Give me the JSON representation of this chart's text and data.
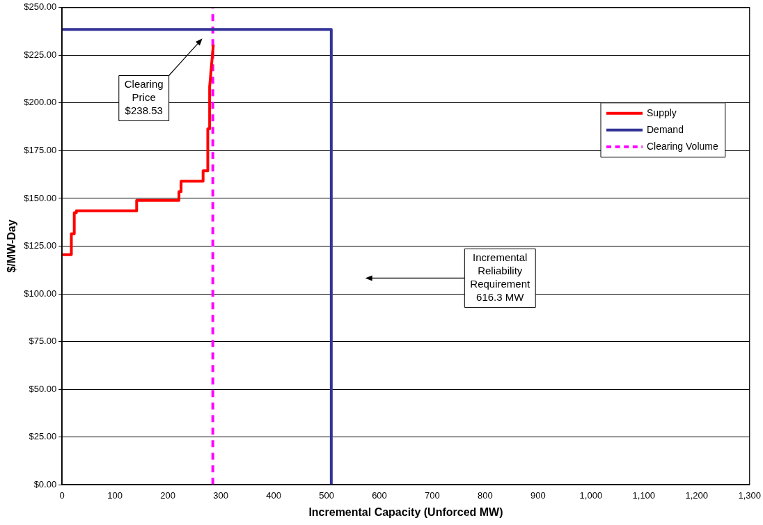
{
  "chart_data": {
    "type": "line",
    "xlabel": "Incremental Capacity (Unforced MW)",
    "ylabel": "$/MW-Day",
    "xlim": [
      0,
      1300
    ],
    "xticks": [
      0,
      100,
      200,
      300,
      400,
      500,
      600,
      700,
      800,
      900,
      {
        "value": 1000,
        "label": "1,000"
      },
      {
        "value": 1100,
        "label": "1,100"
      },
      {
        "value": 1200,
        "label": "1,200"
      },
      {
        "value": 1300,
        "label": "1,300"
      }
    ],
    "ylim": [
      0,
      250
    ],
    "yticks": [
      {
        "value": 0,
        "label": "$0.00"
      },
      {
        "value": 25,
        "label": "$25.00"
      },
      {
        "value": 50,
        "label": "$50.00"
      },
      {
        "value": 75,
        "label": "$75.00"
      },
      {
        "value": 100,
        "label": "$100.00"
      },
      {
        "value": 125,
        "label": "$125.00"
      },
      {
        "value": 150,
        "label": "$150.00"
      },
      {
        "value": 175,
        "label": "$175.00"
      },
      {
        "value": 200,
        "label": "$200.00"
      },
      {
        "value": 225,
        "label": "$225.00"
      },
      {
        "value": 250,
        "label": "$250.00"
      }
    ],
    "grid": "y",
    "legend": "top right",
    "marker": "none",
    "series": [
      {
        "name": "Supply",
        "color": "#ff0000",
        "line_style": "solid",
        "x": [
          0,
          17.5,
          17.5,
          23,
          23,
          27,
          27,
          141,
          141,
          221,
          221,
          225,
          225,
          266.6,
          266.6,
          275.5,
          275.5,
          279,
          279,
          286
        ],
        "values": [
          120.5,
          120.5,
          131.5,
          131.5,
          142.5,
          142.5,
          143.5,
          143.5,
          149,
          149,
          153.5,
          153.5,
          159,
          159,
          164.5,
          164.5,
          186.5,
          186.5,
          208.5,
          230.5
        ]
      },
      {
        "name": "Demand",
        "color": "#333399",
        "line_style": "solid",
        "x": [
          0,
          509,
          509
        ],
        "values": [
          238.5,
          238.5,
          0
        ]
      },
      {
        "name": "Clearing Volume",
        "color": "#ff00ff",
        "line_style": "dashed",
        "x": [
          285,
          285
        ],
        "values": [
          0,
          250
        ]
      }
    ],
    "annotations": [
      "Clearing\nPrice\n$238.53",
      "Incremental\nReliability\nRequirement\n616.3 MW"
    ]
  }
}
